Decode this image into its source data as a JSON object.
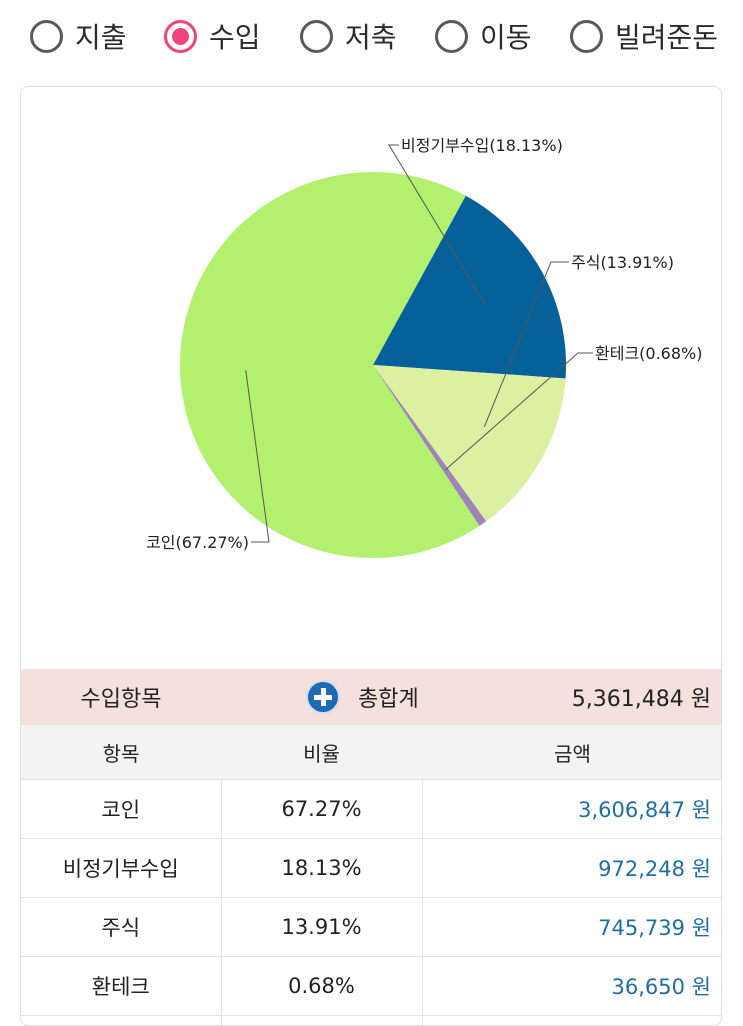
{
  "radio_options": [
    {
      "label": "지출",
      "checked": false
    },
    {
      "label": "수입",
      "checked": true
    },
    {
      "label": "저축",
      "checked": false
    },
    {
      "label": "이동",
      "checked": false
    },
    {
      "label": "빌려준돈",
      "checked": false
    }
  ],
  "chart_data": {
    "type": "pie",
    "slices": [
      {
        "label": "비정기부수입",
        "percent": 18.13,
        "display": "비정기부수입(18.13%)",
        "color": "#06609a"
      },
      {
        "label": "주식",
        "percent": 13.91,
        "display": "주식(13.91%)",
        "color": "#dcf0a2"
      },
      {
        "label": "환테크",
        "percent": 0.68,
        "display": "환테크(0.68%)",
        "color": "#a084b8"
      },
      {
        "label": "코인",
        "percent": 67.27,
        "display": "코인(67.27%)",
        "color": "#b2f06e"
      }
    ]
  },
  "summary": {
    "category_label": "수입항목",
    "total_label": "총합계",
    "total_value": "5,361,484 원"
  },
  "table": {
    "headers": {
      "item": "항목",
      "ratio": "비율",
      "amount": "금액"
    },
    "rows": [
      {
        "item": "코인",
        "ratio": "67.27%",
        "amount": "3,606,847 원"
      },
      {
        "item": "비정기부수입",
        "ratio": "18.13%",
        "amount": "972,248 원"
      },
      {
        "item": "주식",
        "ratio": "13.91%",
        "amount": "745,739 원"
      },
      {
        "item": "환테크",
        "ratio": "0.68%",
        "amount": "36,650 원"
      }
    ]
  },
  "colors": {
    "accent": "#f0457a",
    "amount_text": "#1f6ea0",
    "summary_bg": "#f4e1dc"
  }
}
